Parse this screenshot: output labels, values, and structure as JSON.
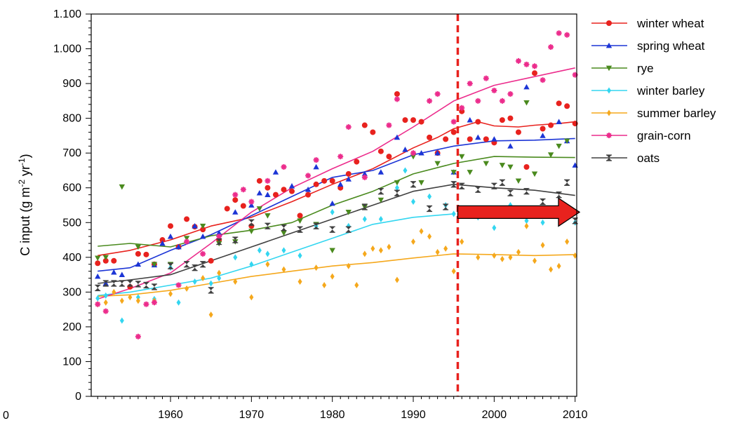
{
  "chart_data": {
    "type": "scatter",
    "title": "",
    "ylabel": {
      "main": "C input (g m",
      "sup1": "-2",
      "mid": " yr",
      "sup2": "-1",
      "end": ")"
    },
    "xlabel": "",
    "xlim": [
      1950.2,
      2010.2
    ],
    "ylim": [
      0,
      1100
    ],
    "x_ticks": [
      1960,
      1970,
      1980,
      1990,
      2000,
      2010
    ],
    "x_tick_labels": [
      "1960",
      "1970",
      "1980",
      "1990",
      "2000",
      "2010"
    ],
    "y_ticks": [
      0,
      100,
      200,
      300,
      400,
      500,
      600,
      700,
      800,
      900,
      1000,
      1100
    ],
    "y_tick_labels": [
      "0",
      "100",
      "200",
      "300",
      "400",
      "500",
      "600",
      "700",
      "800",
      "900",
      "1.000",
      "1.100"
    ],
    "corner_label": "0",
    "grid": false,
    "legend_position": "right",
    "vertical_marker": {
      "x": 1995.5,
      "color": "#e8221e",
      "style": "dashed"
    },
    "arrow": {
      "x_start": 1995.5,
      "x_end": 2010.2,
      "y": 530,
      "color": "#e8221e"
    },
    "series": [
      {
        "name": "winter wheat",
        "color": "#e8221e",
        "marker": "circle",
        "x": [
          1951,
          1952,
          1953,
          1955,
          1956,
          1957,
          1958,
          1959,
          1960,
          1961,
          1962,
          1963,
          1964,
          1965,
          1966,
          1967,
          1968,
          1969,
          1970,
          1971,
          1972,
          1973,
          1974,
          1975,
          1976,
          1977,
          1978,
          1979,
          1980,
          1981,
          1982,
          1983,
          1984,
          1985,
          1986,
          1987,
          1988,
          1989,
          1990,
          1991,
          1992,
          1993,
          1994,
          1995,
          1996,
          1997,
          1998,
          1999,
          2000,
          2001,
          2002,
          2003,
          2004,
          2005,
          2006,
          2007,
          2008,
          2009,
          2010
        ],
        "points": [
          383,
          390,
          390,
          315,
          410,
          408,
          380,
          450,
          490,
          430,
          510,
          488,
          480,
          390,
          450,
          540,
          565,
          548,
          490,
          620,
          600,
          580,
          595,
          590,
          520,
          580,
          610,
          620,
          620,
          600,
          640,
          675,
          780,
          760,
          705,
          690,
          870,
          795,
          795,
          790,
          745,
          700,
          740,
          760,
          820,
          740,
          790,
          740,
          730,
          795,
          800,
          760,
          660,
          930,
          770,
          780,
          843,
          835,
          785
        ],
        "trend_x": [
          1951,
          1955,
          1960,
          1965,
          1970,
          1975,
          1980,
          1985,
          1990,
          1993,
          1995,
          1998,
          2000,
          2003,
          2005,
          2008,
          2010
        ],
        "trend": [
          405,
          420,
          450,
          490,
          515,
          560,
          610,
          655,
          715,
          745,
          770,
          790,
          778,
          775,
          780,
          785,
          790
        ]
      },
      {
        "name": "spring wheat",
        "color": "#1c35d6",
        "marker": "triangle",
        "x": [
          1951,
          1952,
          1953,
          1954,
          1956,
          1958,
          1959,
          1960,
          1961,
          1963,
          1964,
          1966,
          1968,
          1970,
          1971,
          1972,
          1973,
          1975,
          1977,
          1978,
          1980,
          1981,
          1982,
          1984,
          1986,
          1988,
          1989,
          1991,
          1993,
          1995,
          1997,
          1998,
          2000,
          2002,
          2004,
          2006,
          2008,
          2009,
          2010
        ],
        "points": [
          345,
          325,
          357,
          350,
          380,
          378,
          440,
          460,
          430,
          490,
          460,
          470,
          530,
          550,
          585,
          580,
          645,
          605,
          595,
          660,
          555,
          610,
          625,
          640,
          645,
          745,
          710,
          700,
          700,
          645,
          795,
          745,
          740,
          720,
          890,
          750,
          790,
          735,
          665
        ],
        "trend_x": [
          1951,
          1955,
          1960,
          1965,
          1970,
          1975,
          1980,
          1985,
          1990,
          1995,
          2000,
          2005,
          2010
        ],
        "trend": [
          360,
          370,
          420,
          465,
          520,
          575,
          630,
          650,
          695,
          720,
          735,
          737,
          742
        ]
      },
      {
        "name": "rye",
        "color": "#4a8a1e",
        "marker": "triangle-down",
        "x": [
          1951,
          1952,
          1954,
          1956,
          1958,
          1960,
          1962,
          1964,
          1966,
          1968,
          1970,
          1971,
          1972,
          1974,
          1976,
          1978,
          1980,
          1982,
          1984,
          1986,
          1988,
          1990,
          1991,
          1993,
          1995,
          1996,
          1997,
          1999,
          2001,
          2002,
          2003,
          2004,
          2005,
          2007,
          2008,
          2009
        ],
        "points": [
          398,
          400,
          603,
          430,
          380,
          380,
          455,
          490,
          440,
          445,
          475,
          540,
          520,
          470,
          505,
          495,
          420,
          530,
          545,
          565,
          615,
          690,
          615,
          670,
          645,
          690,
          645,
          670,
          665,
          660,
          620,
          845,
          640,
          695,
          720,
          735
        ],
        "trend_x": [
          1951,
          1955,
          1960,
          1965,
          1970,
          1975,
          1980,
          1985,
          1990,
          1995,
          2000,
          2005,
          2010
        ],
        "trend": [
          432,
          440,
          430,
          462,
          478,
          500,
          550,
          590,
          640,
          670,
          690,
          688,
          687
        ]
      },
      {
        "name": "winter barley",
        "color": "#33d6f0",
        "marker": "diamond",
        "x": [
          1951,
          1952,
          1954,
          1956,
          1958,
          1960,
          1961,
          1963,
          1965,
          1966,
          1968,
          1970,
          1971,
          1972,
          1974,
          1976,
          1978,
          1980,
          1982,
          1984,
          1986,
          1988,
          1989,
          1990,
          1992,
          1994,
          1995,
          1996,
          1998,
          2000,
          2002,
          2004,
          2006,
          2008,
          2010
        ],
        "points": [
          282,
          290,
          218,
          285,
          280,
          370,
          270,
          330,
          325,
          340,
          400,
          380,
          420,
          410,
          420,
          405,
          490,
          530,
          490,
          510,
          510,
          600,
          650,
          560,
          575,
          550,
          525,
          520,
          515,
          485,
          550,
          505,
          500,
          530,
          500
        ],
        "trend_x": [
          1951,
          1955,
          1960,
          1965,
          1970,
          1975,
          1980,
          1985,
          1990,
          1995
        ],
        "trend": [
          290,
          300,
          320,
          340,
          375,
          415,
          455,
          495,
          515,
          525
        ]
      },
      {
        "name": "summer barley",
        "color": "#f5a81c",
        "marker": "diamond",
        "x": [
          1951,
          1952,
          1953,
          1954,
          1955,
          1956,
          1958,
          1960,
          1962,
          1964,
          1965,
          1966,
          1968,
          1970,
          1972,
          1974,
          1976,
          1978,
          1979,
          1980,
          1982,
          1983,
          1984,
          1985,
          1986,
          1987,
          1988,
          1990,
          1991,
          1992,
          1993,
          1994,
          1995,
          1996,
          1998,
          2000,
          2001,
          2002,
          2003,
          2004,
          2005,
          2006,
          2007,
          2008,
          2009,
          2010
        ],
        "points": [
          265,
          270,
          300,
          275,
          285,
          275,
          275,
          295,
          310,
          340,
          235,
          355,
          330,
          285,
          380,
          365,
          330,
          370,
          320,
          345,
          375,
          320,
          410,
          425,
          420,
          430,
          335,
          445,
          475,
          460,
          415,
          425,
          360,
          445,
          400,
          405,
          395,
          400,
          415,
          490,
          390,
          435,
          365,
          375,
          445,
          405
        ],
        "trend_x": [
          1951,
          1955,
          1960,
          1965,
          1970,
          1975,
          1980,
          1985,
          1990,
          1995,
          2000,
          2005,
          2010
        ],
        "trend": [
          288,
          292,
          305,
          325,
          345,
          360,
          375,
          385,
          398,
          410,
          408,
          405,
          408
        ]
      },
      {
        "name": "grain-corn",
        "color": "#ec2c8c",
        "marker": "star",
        "x": [
          1951,
          1952,
          1956,
          1957,
          1958,
          1961,
          1962,
          1964,
          1966,
          1968,
          1969,
          1970,
          1972,
          1974,
          1977,
          1978,
          1981,
          1982,
          1984,
          1987,
          1988,
          1990,
          1992,
          1993,
          1995,
          1996,
          1997,
          1998,
          1999,
          2000,
          2001,
          2002,
          2003,
          2004,
          2005,
          2006,
          2007,
          2008,
          2009,
          2010
        ],
        "points": [
          265,
          245,
          172,
          265,
          270,
          320,
          445,
          410,
          460,
          580,
          595,
          560,
          620,
          660,
          635,
          680,
          690,
          775,
          630,
          780,
          855,
          700,
          850,
          870,
          790,
          830,
          900,
          850,
          915,
          880,
          850,
          870,
          965,
          955,
          950,
          910,
          1005,
          1045,
          1040,
          925
        ],
        "trend_x": [
          1951,
          1955,
          1960,
          1965,
          1970,
          1975,
          1980,
          1985,
          1990,
          1995,
          2000,
          2005,
          2010
        ],
        "trend": [
          280,
          310,
          355,
          440,
          530,
          600,
          655,
          705,
          775,
          850,
          895,
          920,
          945
        ]
      },
      {
        "name": "oats",
        "color": "#404040",
        "marker": "hourglass",
        "x": [
          1951,
          1952,
          1953,
          1954,
          1955,
          1956,
          1957,
          1958,
          1960,
          1962,
          1963,
          1964,
          1965,
          1966,
          1968,
          1970,
          1972,
          1974,
          1976,
          1978,
          1980,
          1982,
          1984,
          1986,
          1988,
          1990,
          1992,
          1994,
          1995,
          1996,
          1998,
          2000,
          2001,
          2002,
          2004,
          2006,
          2008,
          2009,
          2010
        ],
        "points": [
          312,
          325,
          325,
          325,
          325,
          323,
          320,
          315,
          375,
          380,
          370,
          380,
          305,
          445,
          450,
          500,
          490,
          485,
          480,
          490,
          480,
          480,
          545,
          590,
          585,
          610,
          540,
          545,
          610,
          605,
          595,
          605,
          615,
          585,
          590,
          560,
          580,
          615,
          505
        ],
        "trend_x": [
          1951,
          1955,
          1960,
          1965,
          1970,
          1975,
          1980,
          1985,
          1990,
          1995,
          2000,
          2005,
          2010
        ],
        "trend": [
          325,
          335,
          350,
          390,
          430,
          470,
          510,
          550,
          590,
          610,
          600,
          593,
          578
        ]
      }
    ]
  }
}
